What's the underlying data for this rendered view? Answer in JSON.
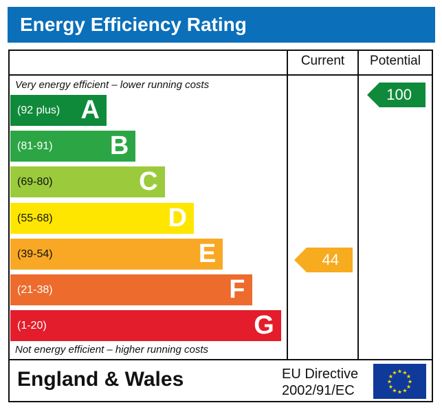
{
  "title": "Energy Efficiency Rating",
  "columns": {
    "current": "Current",
    "potential": "Potential"
  },
  "notes": {
    "top": "Very energy efficient – lower running costs",
    "bottom": "Not energy efficient – higher running costs"
  },
  "footer": {
    "region": "England & Wales",
    "directive_line1": "EU Directive",
    "directive_line2": "2002/91/EC",
    "flag_icon": "eu-flag-icon"
  },
  "chart_data": {
    "type": "bar",
    "title": "Energy Efficiency Rating",
    "bands": [
      {
        "range": "(92 plus)",
        "letter": "A",
        "color": "#0f8a3a"
      },
      {
        "range": "(81-91)",
        "letter": "B",
        "color": "#2ca645"
      },
      {
        "range": "(69-80)",
        "letter": "C",
        "color": "#9bcb3c"
      },
      {
        "range": "(55-68)",
        "letter": "D",
        "color": "#ffe600"
      },
      {
        "range": "(39-54)",
        "letter": "E",
        "color": "#f9a825"
      },
      {
        "range": "(21-38)",
        "letter": "F",
        "color": "#ec6b2d"
      },
      {
        "range": "(1-20)",
        "letter": "G",
        "color": "#e31d2b"
      }
    ],
    "current": {
      "value": "44",
      "band": "E",
      "color": "#f7ab1f"
    },
    "potential": {
      "value": "100",
      "band": "A",
      "color": "#0f8a3a"
    }
  }
}
